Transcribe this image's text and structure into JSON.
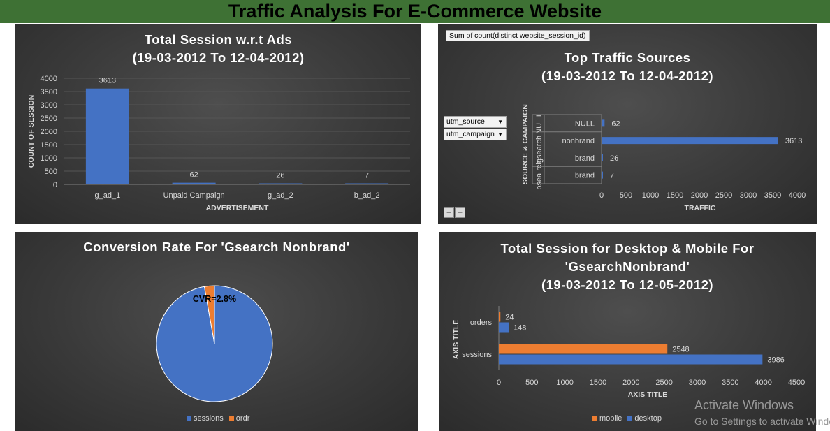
{
  "page_title": "Traffic Analysis For E-Commerce Website",
  "colors": {
    "banner": "#3e7134",
    "blue": "#4472c4",
    "orange": "#ed7d31",
    "panel": "#404040"
  },
  "charts": {
    "ads": {
      "title_line1": "Total Session w.r.t Ads",
      "title_line2": "(19-03-2012 To 12-04-2012)",
      "xlabel": "ADVERTISEMENT",
      "ylabel": "COUNT OF SESSION",
      "yticks": [
        "0",
        "500",
        "1000",
        "1500",
        "2000",
        "2500",
        "3000",
        "3500",
        "4000"
      ]
    },
    "sources": {
      "pivot_field": "Sum of count(distinct website_session_id)",
      "title_line1": "Top Traffic Sources",
      "title_line2": "(19-03-2012 To 12-04-2012)",
      "filter1": "utm_source",
      "filter2": "utm_campaign",
      "ylabel": "SOURCE & CAMPAIGN",
      "xlabel": "TRAFFIC",
      "group_null": "NUL L",
      "group_gsearch": "gsearch",
      "group_bsearch": "bsea rch",
      "xticks": [
        "0",
        "500",
        "1000",
        "1500",
        "2000",
        "2500",
        "3000",
        "3500",
        "4000"
      ],
      "plus": "+",
      "minus": "−"
    },
    "conversion": {
      "title": "Conversion Rate For 'Gsearch Nonbrand'",
      "annotation": "CVR=2.8%"
    },
    "device": {
      "title_line1": "Total Session for Desktop & Mobile For",
      "title_line2": "'GsearchNonbrand'",
      "title_line3": "(19-03-2012 To 12-05-2012)",
      "ylabel": "AXIS TITLE",
      "xlabel": "AXIS TITLE",
      "xticks": [
        "0",
        "500",
        "1000",
        "1500",
        "2000",
        "2500",
        "3000",
        "3500",
        "4000",
        "4500"
      ]
    }
  },
  "watermark": {
    "line1": "Activate Windows",
    "line2": "Go to Settings to activate Windows."
  },
  "chart_data": [
    {
      "type": "bar",
      "title": "Total Session w.r.t Ads (19-03-2012 To 12-04-2012)",
      "xlabel": "ADVERTISEMENT",
      "ylabel": "COUNT OF SESSION",
      "categories": [
        "g_ad_1",
        "Unpaid Campaign",
        "g_ad_2",
        "b_ad_2"
      ],
      "values": [
        3613,
        62,
        26,
        7
      ],
      "ylim": [
        0,
        4000
      ],
      "grid": true
    },
    {
      "type": "bar",
      "orientation": "horizontal",
      "title": "Top Traffic Sources (19-03-2012 To 12-04-2012)",
      "xlabel": "TRAFFIC",
      "ylabel": "SOURCE & CAMPAIGN",
      "categories": [
        "NULL",
        "nonbrand",
        "brand",
        "brand"
      ],
      "groups": [
        "NUL L",
        "gsearch",
        "gsearch",
        "bsea rch"
      ],
      "values": [
        62,
        3613,
        26,
        7
      ],
      "xlim": [
        0,
        4000
      ],
      "grid": false
    },
    {
      "type": "pie",
      "title": "Conversion Rate For 'Gsearch Nonbrand'",
      "labels": [
        "sessions",
        "ordr"
      ],
      "values": [
        97.2,
        2.8
      ],
      "legend": "bottom"
    },
    {
      "type": "bar",
      "orientation": "horizontal",
      "title": "Total Session for Desktop & Mobile For 'GsearchNonbrand' (19-03-2012 To 12-05-2012)",
      "xlabel": "AXIS TITLE",
      "ylabel": "AXIS TITLE",
      "categories": [
        "orders",
        "sessions"
      ],
      "series": [
        {
          "name": "mobile",
          "values": [
            24,
            2548
          ]
        },
        {
          "name": "desktop",
          "values": [
            148,
            3986
          ]
        }
      ],
      "xlim": [
        0,
        4500
      ],
      "legend": "bottom",
      "grid": false
    }
  ]
}
